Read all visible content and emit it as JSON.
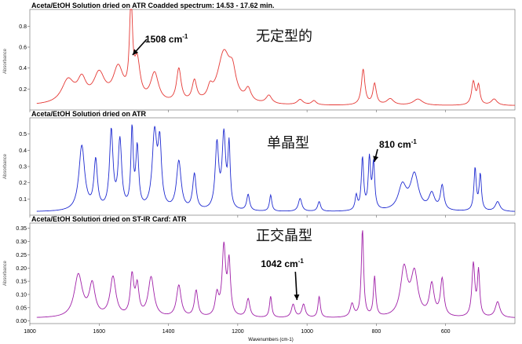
{
  "chart_data": {
    "type": "line",
    "xlabel": "Wavenumbers (cm-1)",
    "x_ticks": [
      1800,
      1600,
      1400,
      1200,
      1000,
      800,
      600
    ],
    "xlim": [
      1800,
      400
    ],
    "panels": [
      {
        "title": "Aceta/EtOH Solution dried on ATR Coadded spectrum: 14.53 - 17.62 min.",
        "ylabel": "Absorbance",
        "y_ticks": [
          "0.8",
          "0.6",
          "0.4",
          "0.2"
        ],
        "y_tick_values": [
          0.8,
          0.6,
          0.4,
          0.2
        ],
        "ylim": [
          0.0,
          0.96
        ],
        "color": "#e53935",
        "series_label": "无定型的",
        "annotation": {
          "text": "1508 cm-1",
          "x": 1508,
          "y": 0.9
        },
        "baseline": 0.04,
        "peaks": [
          [
            1690,
            0.22,
            22
          ],
          [
            1650,
            0.2,
            15
          ],
          [
            1600,
            0.27,
            20
          ],
          [
            1545,
            0.32,
            18
          ],
          [
            1508,
            0.92,
            5
          ],
          [
            1490,
            0.36,
            10
          ],
          [
            1440,
            0.28,
            14
          ],
          [
            1370,
            0.32,
            8
          ],
          [
            1325,
            0.2,
            8
          ],
          [
            1280,
            0.1,
            8
          ],
          [
            1240,
            0.48,
            22
          ],
          [
            1215,
            0.22,
            12
          ],
          [
            1170,
            0.12,
            10
          ],
          [
            1110,
            0.08,
            10
          ],
          [
            1020,
            0.05,
            10
          ],
          [
            980,
            0.04,
            8
          ],
          [
            838,
            0.34,
            6
          ],
          [
            805,
            0.2,
            6
          ],
          [
            760,
            0.06,
            12
          ],
          [
            680,
            0.06,
            16
          ],
          [
            520,
            0.22,
            6
          ],
          [
            505,
            0.18,
            5
          ],
          [
            460,
            0.06,
            10
          ]
        ]
      },
      {
        "title": "Aceta/EtOH Solution dried on ATR",
        "ylabel": "Absorbance",
        "y_ticks": [
          "0.5",
          "0.4",
          "0.3",
          "0.2",
          "0.1"
        ],
        "y_tick_values": [
          0.5,
          0.4,
          0.3,
          0.2,
          0.1
        ],
        "ylim": [
          0.0,
          0.6
        ],
        "color": "#1f2bd1",
        "series_label": "单晶型",
        "annotation": {
          "text": "810 cm-1",
          "x": 810,
          "y": 0.33
        },
        "baseline": 0.02,
        "peaks": [
          [
            1650,
            0.4,
            10
          ],
          [
            1610,
            0.3,
            6
          ],
          [
            1565,
            0.48,
            6
          ],
          [
            1540,
            0.42,
            6
          ],
          [
            1505,
            0.48,
            4
          ],
          [
            1490,
            0.37,
            5
          ],
          [
            1440,
            0.46,
            8
          ],
          [
            1425,
            0.38,
            6
          ],
          [
            1370,
            0.3,
            8
          ],
          [
            1325,
            0.22,
            6
          ],
          [
            1260,
            0.4,
            6
          ],
          [
            1240,
            0.45,
            6
          ],
          [
            1225,
            0.38,
            4
          ],
          [
            1170,
            0.1,
            5
          ],
          [
            1105,
            0.1,
            4
          ],
          [
            1020,
            0.08,
            6
          ],
          [
            965,
            0.06,
            5
          ],
          [
            858,
            0.09,
            4
          ],
          [
            840,
            0.32,
            4
          ],
          [
            820,
            0.31,
            4
          ],
          [
            808,
            0.28,
            4
          ],
          [
            725,
            0.15,
            14
          ],
          [
            690,
            0.22,
            14
          ],
          [
            640,
            0.1,
            10
          ],
          [
            610,
            0.15,
            6
          ],
          [
            515,
            0.26,
            4
          ],
          [
            500,
            0.22,
            4
          ],
          [
            450,
            0.06,
            8
          ]
        ]
      },
      {
        "title": "Aceta/EtOH Solution dried on ST-IR Card:  ATR",
        "ylabel": "Absorbance",
        "y_ticks": [
          "0.35",
          "0.30",
          "0.25",
          "0.20",
          "0.15",
          "0.10",
          "0.05",
          "0.00"
        ],
        "y_tick_values": [
          0.35,
          0.3,
          0.25,
          0.2,
          0.15,
          0.1,
          0.05,
          0.0
        ],
        "ylim": [
          -0.01,
          0.37
        ],
        "color": "#a020a8",
        "series_label": "正交晶型",
        "annotation": {
          "text": "1042 cm-1",
          "x": 1020,
          "y": 0.05
        },
        "baseline": 0.01,
        "peaks": [
          [
            1660,
            0.16,
            14
          ],
          [
            1620,
            0.12,
            10
          ],
          [
            1560,
            0.15,
            10
          ],
          [
            1505,
            0.15,
            6
          ],
          [
            1490,
            0.11,
            6
          ],
          [
            1450,
            0.15,
            10
          ],
          [
            1370,
            0.12,
            8
          ],
          [
            1320,
            0.1,
            6
          ],
          [
            1260,
            0.08,
            6
          ],
          [
            1240,
            0.26,
            6
          ],
          [
            1225,
            0.2,
            5
          ],
          [
            1170,
            0.07,
            6
          ],
          [
            1105,
            0.08,
            4
          ],
          [
            1040,
            0.05,
            6
          ],
          [
            1010,
            0.05,
            6
          ],
          [
            965,
            0.08,
            4
          ],
          [
            870,
            0.05,
            6
          ],
          [
            840,
            0.33,
            4
          ],
          [
            805,
            0.15,
            4
          ],
          [
            720,
            0.18,
            12
          ],
          [
            690,
            0.16,
            12
          ],
          [
            640,
            0.12,
            8
          ],
          [
            610,
            0.14,
            6
          ],
          [
            520,
            0.2,
            5
          ],
          [
            505,
            0.17,
            4
          ],
          [
            450,
            0.06,
            8
          ]
        ]
      }
    ]
  }
}
